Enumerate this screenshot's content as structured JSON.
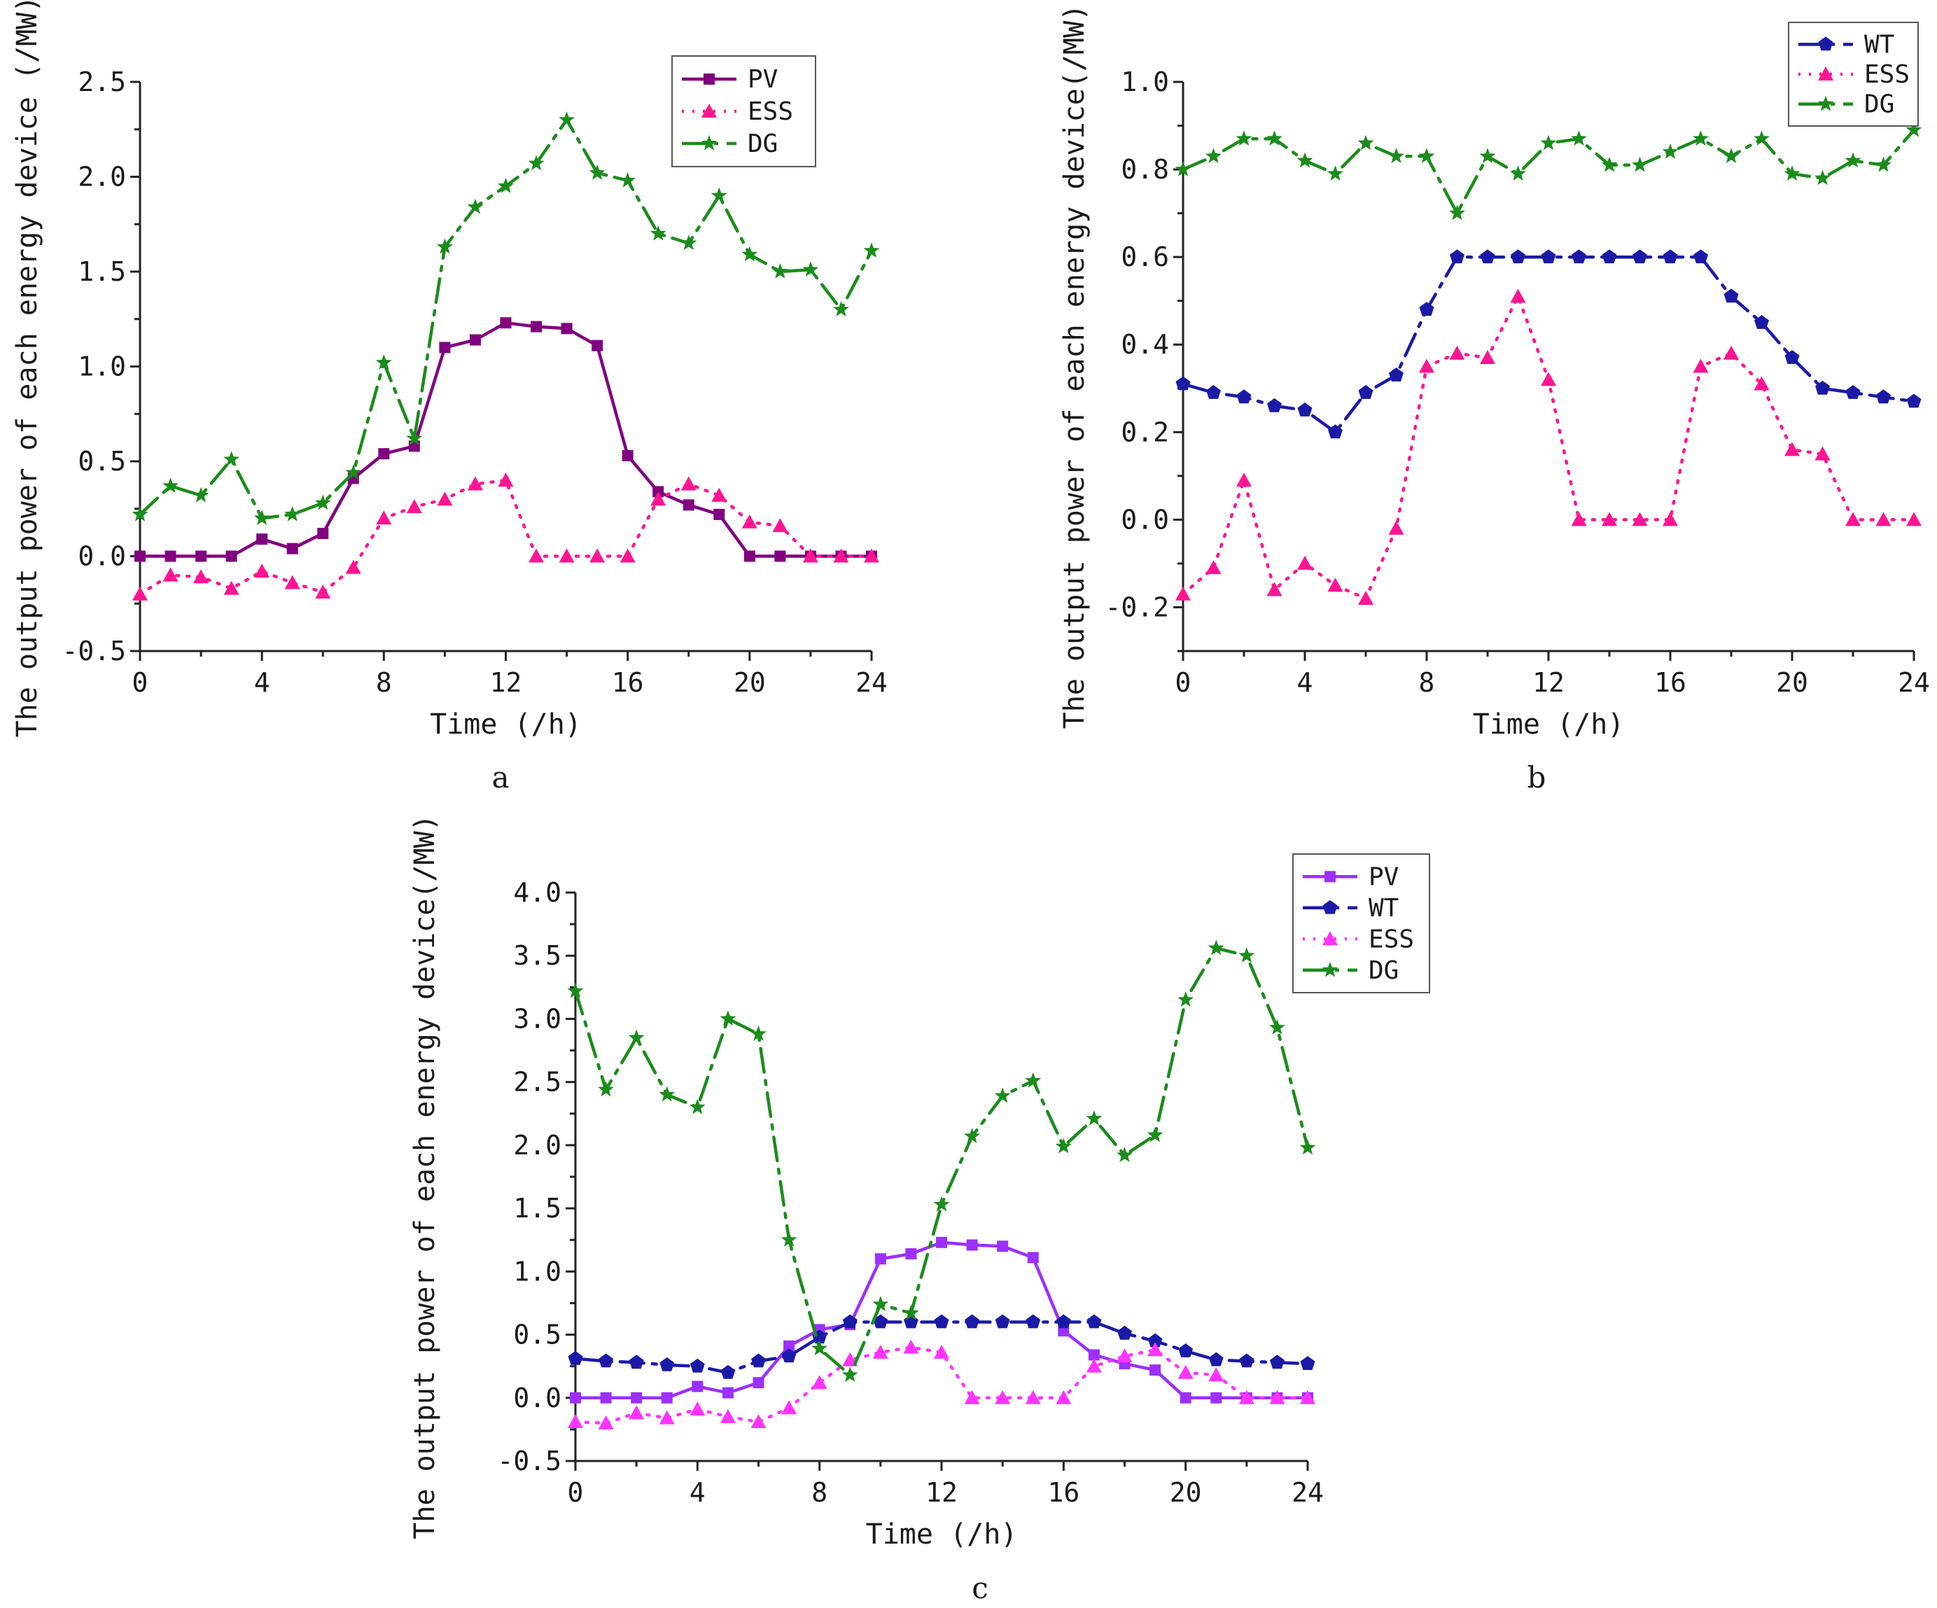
{
  "chart_data": [
    {
      "id": "a",
      "type": "line",
      "panel_label": "a",
      "xlabel": "Time (/h)",
      "ylabel": "The output power of each energy device (/MW)",
      "xlim": [
        0,
        24
      ],
      "ylim": [
        -0.5,
        2.5
      ],
      "xticks": [
        0,
        4,
        8,
        12,
        16,
        20,
        24
      ],
      "xtick_labels": [
        "0",
        "4",
        "8",
        "12",
        "16",
        "20",
        "24"
      ],
      "yticks": [
        -0.5,
        0.0,
        0.5,
        1.0,
        1.5,
        2.0,
        2.5
      ],
      "ytick_labels": [
        "-0.5",
        "0.0",
        "0.5",
        "1.0",
        "1.5",
        "2.0",
        "2.5"
      ],
      "legend_position": "top-right",
      "x": [
        0,
        1,
        2,
        3,
        4,
        5,
        6,
        7,
        8,
        9,
        10,
        11,
        12,
        13,
        14,
        15,
        16,
        17,
        18,
        19,
        20,
        21,
        22,
        23,
        24
      ],
      "series": [
        {
          "name": "PV",
          "label": "PV",
          "color": "#800080",
          "marker": "square",
          "style": "solid",
          "values": [
            0,
            0,
            0,
            0,
            0.09,
            0.04,
            0.12,
            0.41,
            0.54,
            0.58,
            1.1,
            1.14,
            1.23,
            1.21,
            1.2,
            1.11,
            0.53,
            0.34,
            0.27,
            0.22,
            0,
            0,
            0,
            0,
            0
          ]
        },
        {
          "name": "ESS",
          "label": "ESS",
          "color": "#ff1493",
          "marker": "triangle",
          "style": "dotted",
          "values": [
            -0.2,
            -0.1,
            -0.11,
            -0.17,
            -0.08,
            -0.14,
            -0.19,
            -0.06,
            0.2,
            0.26,
            0.3,
            0.38,
            0.4,
            0,
            0,
            0,
            0,
            0.3,
            0.38,
            0.32,
            0.18,
            0.16,
            0,
            0,
            0
          ]
        },
        {
          "name": "DG",
          "label": "DG",
          "color": "#1a8c1a",
          "marker": "star",
          "style": "dashdot",
          "values": [
            0.22,
            0.37,
            0.32,
            0.51,
            0.2,
            0.22,
            0.28,
            0.44,
            1.02,
            0.62,
            1.63,
            1.84,
            1.95,
            2.07,
            2.3,
            2.02,
            1.98,
            1.7,
            1.65,
            1.9,
            1.59,
            1.5,
            1.51,
            1.3,
            1.61
          ]
        }
      ]
    },
    {
      "id": "b",
      "type": "line",
      "panel_label": "b",
      "xlabel": "Time (/h)",
      "ylabel": "The output power of each energy device(/MW)",
      "xlim": [
        0,
        24
      ],
      "ylim": [
        -0.3,
        1.0
      ],
      "xticks": [
        0,
        4,
        8,
        12,
        16,
        20,
        24
      ],
      "xtick_labels": [
        "0",
        "4",
        "8",
        "12",
        "16",
        "20",
        "24"
      ],
      "yticks": [
        -0.2,
        0.0,
        0.2,
        0.4,
        0.6,
        0.8,
        1.0
      ],
      "ytick_labels": [
        "-0.2",
        "0.0",
        "0.2",
        "0.4",
        "0.6",
        "0.8",
        "1.0"
      ],
      "legend_position": "top-right",
      "x": [
        0,
        1,
        2,
        3,
        4,
        5,
        6,
        7,
        8,
        9,
        10,
        11,
        12,
        13,
        14,
        15,
        16,
        17,
        18,
        19,
        20,
        21,
        22,
        23,
        24
      ],
      "series": [
        {
          "name": "WT",
          "label": "WT",
          "color": "#1a1aa6",
          "marker": "pentagon",
          "style": "dashdot",
          "values": [
            0.31,
            0.29,
            0.28,
            0.26,
            0.25,
            0.2,
            0.29,
            0.33,
            0.48,
            0.6,
            0.6,
            0.6,
            0.6,
            0.6,
            0.6,
            0.6,
            0.6,
            0.6,
            0.51,
            0.45,
            0.37,
            0.3,
            0.29,
            0.28,
            0.27
          ]
        },
        {
          "name": "ESS",
          "label": "ESS",
          "color": "#ff1493",
          "marker": "triangle",
          "style": "dotted",
          "values": [
            -0.17,
            -0.11,
            0.09,
            -0.16,
            -0.1,
            -0.15,
            -0.18,
            -0.02,
            0.35,
            0.38,
            0.37,
            0.51,
            0.32,
            0,
            0,
            0,
            0,
            0.35,
            0.38,
            0.31,
            0.16,
            0.15,
            0,
            0,
            0
          ]
        },
        {
          "name": "DG",
          "label": "DG",
          "color": "#1a8c1a",
          "marker": "star",
          "style": "dashdot",
          "values": [
            0.8,
            0.83,
            0.87,
            0.87,
            0.82,
            0.79,
            0.86,
            0.83,
            0.83,
            0.7,
            0.83,
            0.79,
            0.86,
            0.87,
            0.81,
            0.81,
            0.84,
            0.87,
            0.83,
            0.87,
            0.79,
            0.78,
            0.82,
            0.81,
            0.89
          ]
        }
      ]
    },
    {
      "id": "c",
      "type": "line",
      "panel_label": "c",
      "xlabel": "Time (/h)",
      "ylabel": "The output power of each energy device(/MW)",
      "xlim": [
        0,
        24
      ],
      "ylim": [
        -0.5,
        4.0
      ],
      "xticks": [
        0,
        4,
        8,
        12,
        16,
        20,
        24
      ],
      "xtick_labels": [
        "0",
        "4",
        "8",
        "12",
        "16",
        "20",
        "24"
      ],
      "yticks": [
        -0.5,
        0.0,
        0.5,
        1.0,
        1.5,
        2.0,
        2.5,
        3.0,
        3.5,
        4.0
      ],
      "ytick_labels": [
        "-0.5",
        "0.0",
        "0.5",
        "1.0",
        "1.5",
        "2.0",
        "2.5",
        "3.0",
        "3.5",
        "4.0"
      ],
      "legend_position": "top-right",
      "x": [
        0,
        1,
        2,
        3,
        4,
        5,
        6,
        7,
        8,
        9,
        10,
        11,
        12,
        13,
        14,
        15,
        16,
        17,
        18,
        19,
        20,
        21,
        22,
        23,
        24
      ],
      "series": [
        {
          "name": "PV",
          "label": "PV",
          "color": "#9b30ff",
          "marker": "square",
          "style": "solid",
          "values": [
            0,
            0,
            0,
            0,
            0.09,
            0.04,
            0.12,
            0.41,
            0.54,
            0.58,
            1.1,
            1.14,
            1.23,
            1.21,
            1.2,
            1.11,
            0.53,
            0.34,
            0.27,
            0.22,
            0,
            0,
            0,
            0,
            0
          ]
        },
        {
          "name": "WT",
          "label": "WT",
          "color": "#1a1aa6",
          "marker": "pentagon",
          "style": "dashdot",
          "values": [
            0.31,
            0.29,
            0.28,
            0.26,
            0.25,
            0.2,
            0.29,
            0.33,
            0.48,
            0.6,
            0.6,
            0.6,
            0.6,
            0.6,
            0.6,
            0.6,
            0.6,
            0.6,
            0.51,
            0.45,
            0.37,
            0.3,
            0.29,
            0.28,
            0.27
          ]
        },
        {
          "name": "ESS",
          "label": "ESS",
          "color": "#ff33ff",
          "marker": "triangle",
          "style": "dotted",
          "values": [
            -0.19,
            -0.2,
            -0.12,
            -0.16,
            -0.09,
            -0.15,
            -0.19,
            -0.08,
            0.12,
            0.3,
            0.36,
            0.4,
            0.36,
            0,
            0,
            0,
            0,
            0.25,
            0.33,
            0.38,
            0.2,
            0.18,
            0,
            0,
            0
          ]
        },
        {
          "name": "DG",
          "label": "DG",
          "color": "#1a8c1a",
          "marker": "star",
          "style": "dashdot",
          "values": [
            3.22,
            2.44,
            2.85,
            2.4,
            2.3,
            3.0,
            2.88,
            1.25,
            0.39,
            0.18,
            0.74,
            0.67,
            1.53,
            2.07,
            2.39,
            2.51,
            1.99,
            2.21,
            1.92,
            2.08,
            3.15,
            3.56,
            3.5,
            2.93,
            1.98
          ]
        }
      ]
    }
  ]
}
